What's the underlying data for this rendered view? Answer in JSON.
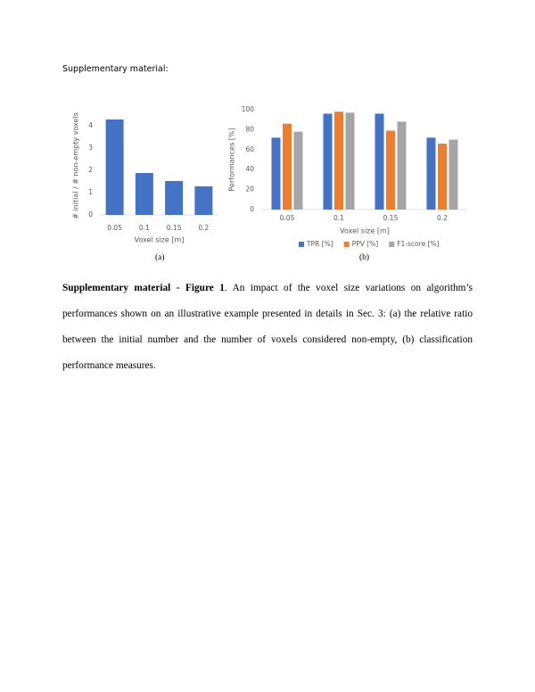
{
  "header": "Supplementary material:",
  "subfigure_labels": [
    "(a)",
    "(b)"
  ],
  "caption": {
    "label": "Supplementary material - Figure 1",
    "text": ". An impact of the voxel size variations on algorithm’s performances shown on an illustrative example presented in details in Sec. 3: (a) the relative ratio between the initial number and the number of voxels considered non-empty, (b) classification performance measures."
  },
  "chart_data": [
    {
      "type": "bar",
      "x_label": "Voxel size [m]",
      "y_label": "# initial / # non-empty voxels",
      "categories": [
        "0.05",
        "0.1",
        "0.15",
        "0.2"
      ],
      "values": [
        4.28,
        1.88,
        1.52,
        1.28
      ],
      "color": "#4472c4",
      "ylim": [
        0,
        4.4
      ],
      "yticks": [
        0,
        1,
        2,
        3,
        4
      ]
    },
    {
      "type": "grouped-bar",
      "x_label": "Voxel size [m]",
      "y_label": "Performances [%]",
      "categories": [
        "0.05",
        "0.1",
        "0.15",
        "0.2"
      ],
      "series": [
        {
          "name": "TPR [%]",
          "color": "#4472c4",
          "values": [
            72,
            96,
            96,
            72
          ]
        },
        {
          "name": "PPV [%]",
          "color": "#ed7d31",
          "values": [
            86,
            98,
            79,
            66
          ]
        },
        {
          "name": "F1-score [%]",
          "color": "#a5a5a5",
          "values": [
            78,
            97,
            88,
            70
          ]
        }
      ],
      "ylim": [
        0,
        100
      ],
      "yticks": [
        0,
        20,
        40,
        60,
        80,
        100
      ],
      "legend": "bottom"
    }
  ]
}
